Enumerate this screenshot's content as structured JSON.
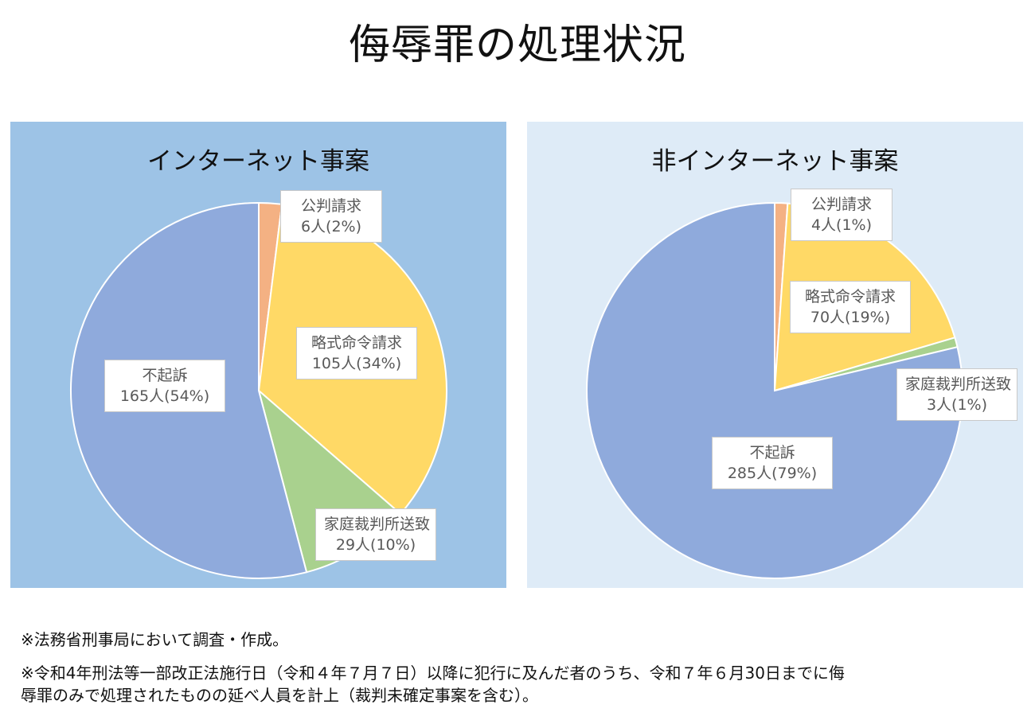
{
  "title": "侮辱罪の処理状況",
  "chart_data": [
    {
      "type": "pie",
      "title": "インターネット事案",
      "slices": [
        {
          "label": "公判請求",
          "count": 6,
          "value_text": "6人(2%)",
          "color": "#f4b183"
        },
        {
          "label": "略式命令請求",
          "count": 105,
          "value_text": "105人(34%)",
          "color": "#ffd966"
        },
        {
          "label": "家庭裁判所送致",
          "count": 29,
          "value_text": "29人(10%)",
          "color": "#a9d18e"
        },
        {
          "label": "不起訴",
          "count": 165,
          "value_text": "165人(54%)",
          "color": "#8faadc"
        }
      ]
    },
    {
      "type": "pie",
      "title": "非インターネット事案",
      "slices": [
        {
          "label": "公判請求",
          "count": 4,
          "value_text": "4人(1%)",
          "color": "#f4b183"
        },
        {
          "label": "略式命令請求",
          "count": 70,
          "value_text": "70人(19%)",
          "color": "#ffd966"
        },
        {
          "label": "家庭裁判所送致",
          "count": 3,
          "value_text": "3人(1%)",
          "color": "#a9d18e"
        },
        {
          "label": "不起訴",
          "count": 285,
          "value_text": "285人(79%)",
          "color": "#8faadc"
        }
      ]
    }
  ],
  "footnotes": [
    "※法務省刑事局において調査・作成。",
    "※令和4年刑法等一部改正法施行日（令和４年７月７日）以降に犯行に及んだ者のうち、令和７年６月30日までに侮",
    "辱罪のみで処理されたものの延べ人員を計上（裁判未確定事案を含む）。"
  ]
}
